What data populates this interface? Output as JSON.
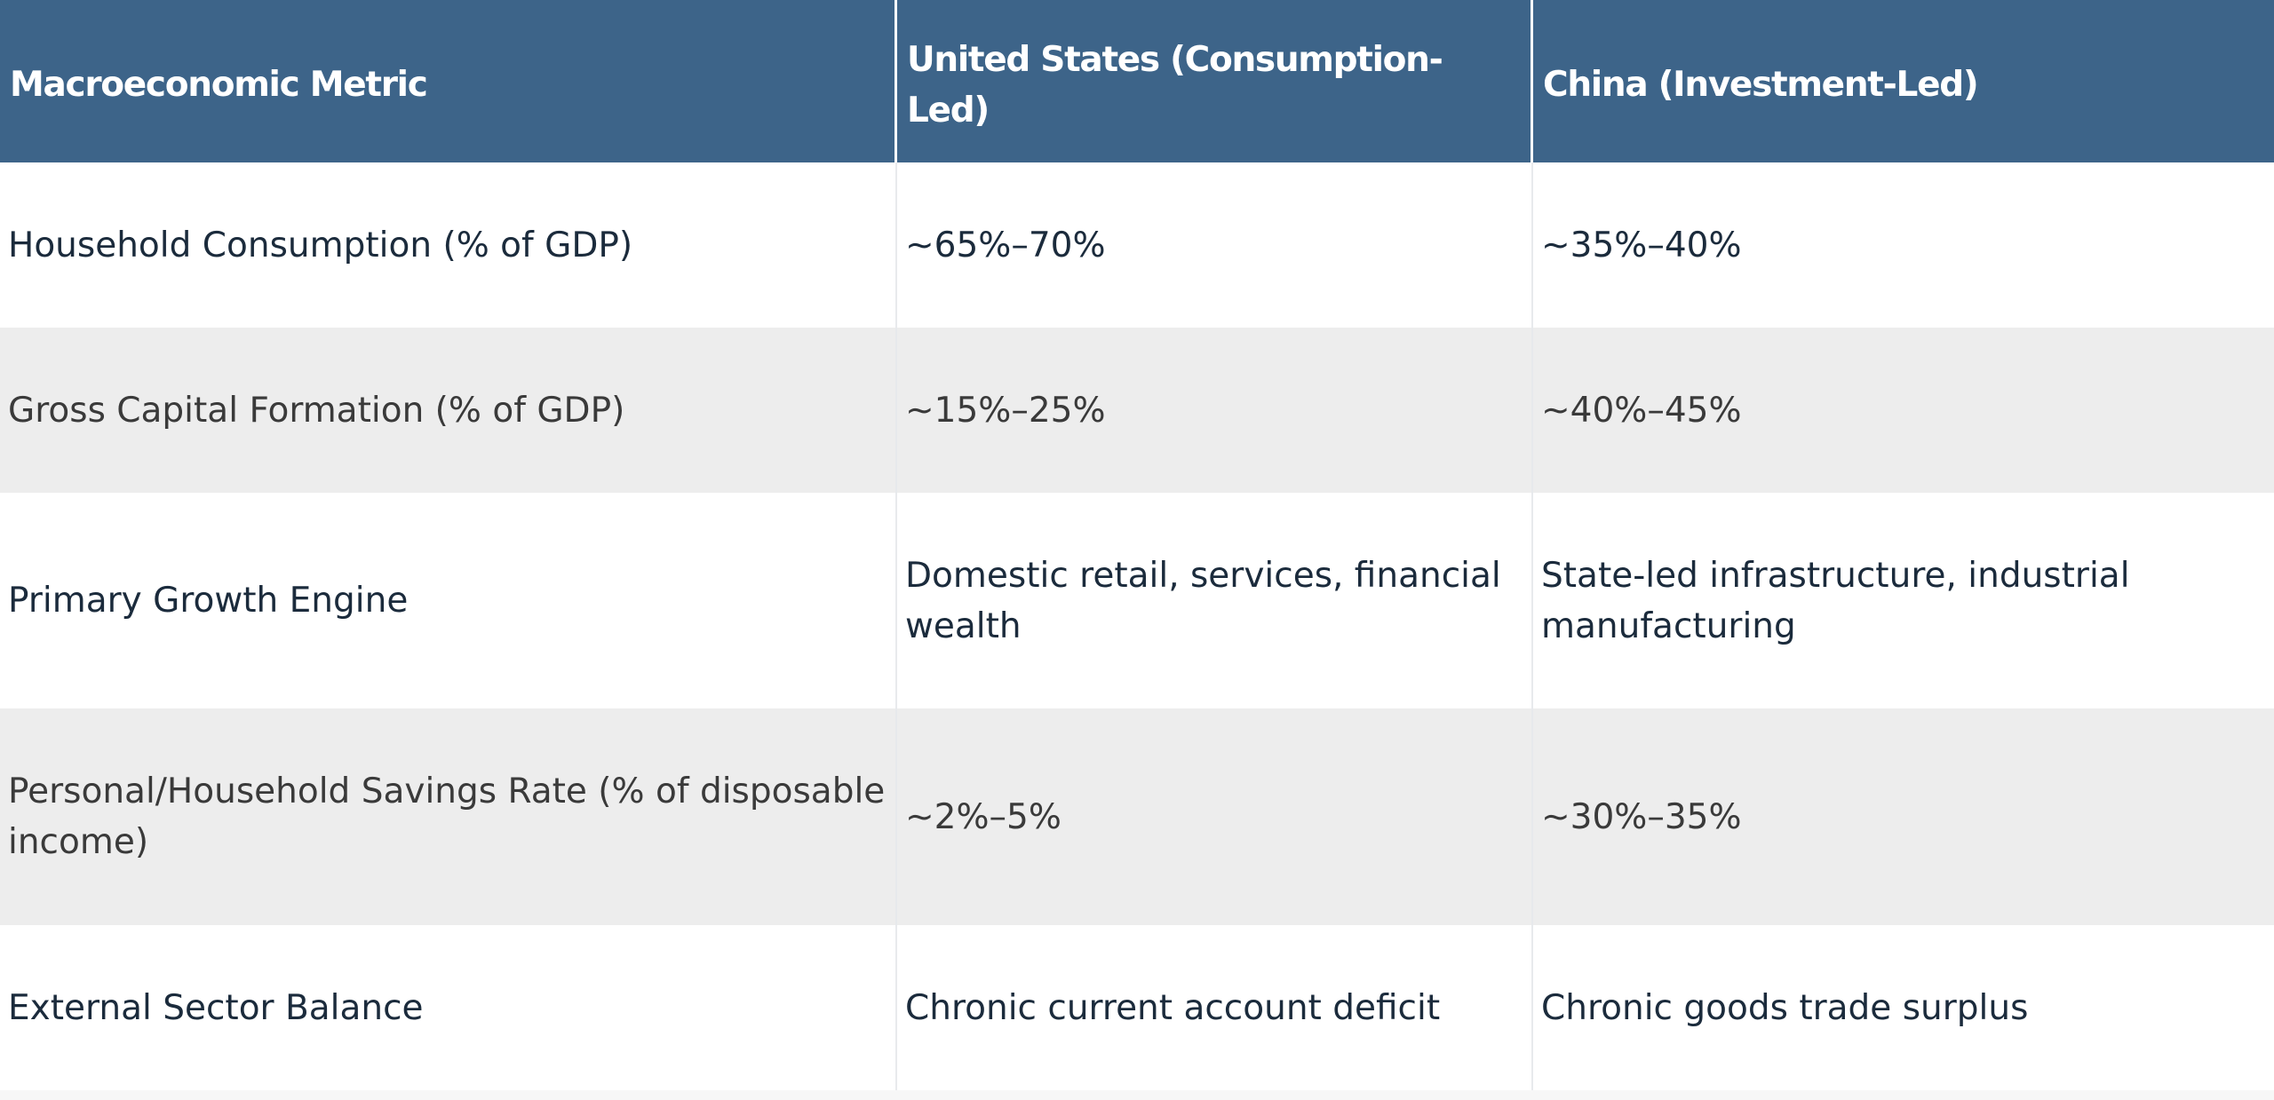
{
  "table": {
    "headers": [
      "Macroeconomic Metric",
      "United States (Consumption-Led)",
      "China (Investment-Led)"
    ],
    "rows": [
      [
        "Household Consumption (% of GDP)",
        "~65%–70%",
        "~35%–40%"
      ],
      [
        "Gross Capital Formation (% of GDP)",
        "~15%–25%",
        "~40%–45%"
      ],
      [
        "Primary Growth Engine",
        "Domestic retail, services, financial wealth",
        "State-led infrastructure, industrial manufacturing"
      ],
      [
        "Personal/Household Savings Rate (% of disposable income)",
        "~2%–5%",
        "~30%–35%"
      ],
      [
        "External Sector Balance",
        "Chronic current account deficit",
        "Chronic goods trade surplus"
      ]
    ]
  },
  "colors": {
    "header_bg": "#3d6489",
    "header_text": "#ffffff",
    "zebra_row": "#ededed",
    "body_text": "#1b2b3c"
  }
}
